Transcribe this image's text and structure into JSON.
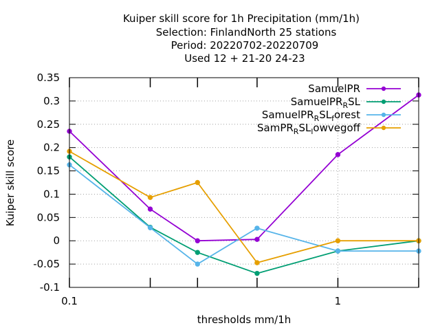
{
  "chart_data": {
    "type": "line",
    "title_lines": [
      "Kuiper skill score  for 1h Precipitation (mm/1h)",
      "Selection: FinlandNorth     25 stations",
      "Period: 20220702-20220709",
      "Used  12 + 21-20 24-23"
    ],
    "xlabel": "thresholds mm/1h",
    "ylabel": "Kuiper skill score",
    "x_scale": "log",
    "xlim": [
      0.1,
      2
    ],
    "ylim": [
      -0.1,
      0.35
    ],
    "x_ticks": [
      {
        "value": 0.1,
        "label": "0.1"
      },
      {
        "value": 1,
        "label": "1"
      }
    ],
    "x_minor_ticks": [
      0.2,
      0.3,
      0.5,
      2
    ],
    "y_ticks": [
      {
        "value": 0.35,
        "label": "0.35"
      },
      {
        "value": 0.3,
        "label": "0.3"
      },
      {
        "value": 0.25,
        "label": "0.25"
      },
      {
        "value": 0.2,
        "label": "0.2"
      },
      {
        "value": 0.15,
        "label": "0.15"
      },
      {
        "value": 0.1,
        "label": "0.1"
      },
      {
        "value": 0.05,
        "label": "0.05"
      },
      {
        "value": 0,
        "label": "0"
      },
      {
        "value": -0.05,
        "label": "-0.05"
      },
      {
        "value": -0.1,
        "label": "-0.1"
      }
    ],
    "grid": true,
    "legend_position": "top-right",
    "x": [
      0.1,
      0.2,
      0.3,
      0.5,
      1,
      2
    ],
    "series": [
      {
        "name": "SamuelPR",
        "name_main": "SamuelPR",
        "name_sub": "",
        "name_tail": "",
        "color": "#9400d3",
        "values": [
          0.235,
          0.068,
          0.0,
          0.003,
          0.185,
          0.313
        ]
      },
      {
        "name": "SamuelPR_RSL",
        "name_main": "SamuelPR",
        "name_sub": "R",
        "name_tail": "SL",
        "color": "#009e73",
        "values": [
          0.18,
          0.029,
          -0.025,
          -0.07,
          -0.022,
          0.0
        ]
      },
      {
        "name": "SamuelPR_RSL_forest",
        "name_main": "SamuelPR",
        "name_sub": "R",
        "name_tail": "SL",
        "name_sub2": "f",
        "name_tail2": "orest",
        "color": "#56b4e9",
        "values": [
          0.163,
          0.028,
          -0.05,
          0.027,
          -0.022,
          -0.022
        ]
      },
      {
        "name": "SamPR_RSL_lowvegoff",
        "name_main": "SamPR",
        "name_sub": "R",
        "name_tail": "SL",
        "name_sub2": "l",
        "name_tail2": "owvegoff",
        "color": "#e69f00",
        "values": [
          0.192,
          0.093,
          0.125,
          -0.047,
          0.0,
          0.0
        ]
      }
    ]
  }
}
